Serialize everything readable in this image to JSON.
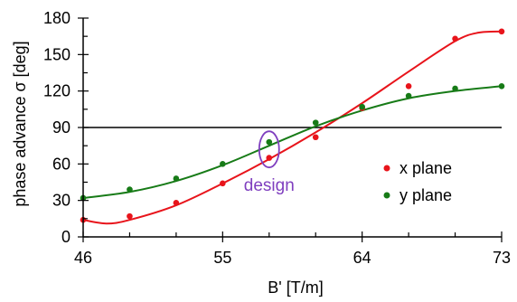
{
  "chart_data": {
    "type": "scatter",
    "xlabel": "B' [T/m]",
    "ylabel": "phase advance σ [deg]",
    "xlim": [
      46,
      73
    ],
    "ylim": [
      0,
      180
    ],
    "x_ticks": [
      46,
      55,
      64,
      73
    ],
    "x_minor_step": 3,
    "y_ticks": [
      0,
      30,
      60,
      90,
      120,
      150,
      180
    ],
    "y_minor_step": 15,
    "grid": false,
    "legend_position": "right-middle",
    "reference_line": {
      "y": 90,
      "color": "#000000"
    },
    "series": [
      {
        "name": "x plane",
        "color": "#e8141b",
        "x": [
          46,
          49,
          52,
          55,
          58,
          61,
          64,
          67,
          70,
          73
        ],
        "y": [
          14,
          17,
          28,
          44,
          65,
          82,
          106,
          124,
          163,
          169
        ],
        "fit": {
          "x": [
            46,
            47.5,
            49,
            52,
            55,
            58,
            61,
            64,
            67,
            70,
            71.5,
            73
          ],
          "y": [
            14,
            11,
            14,
            26,
            44,
            64,
            86,
            110,
            136,
            161,
            168,
            169
          ]
        }
      },
      {
        "name": "y plane",
        "color": "#177b17",
        "x": [
          46,
          49,
          52,
          55,
          58,
          61,
          64,
          67,
          70,
          73
        ],
        "y": [
          32,
          39,
          48,
          60,
          78,
          94,
          107,
          116,
          122,
          124
        ],
        "fit": {
          "x": [
            46,
            49,
            52,
            55,
            58,
            61,
            64,
            67,
            70,
            73
          ],
          "y": [
            32,
            37,
            46,
            59,
            75,
            91,
            104,
            114,
            120,
            124
          ]
        }
      }
    ],
    "annotations": [
      {
        "text": "design",
        "color": "#7f3fbf",
        "x": 58,
        "y": 72
      }
    ]
  }
}
